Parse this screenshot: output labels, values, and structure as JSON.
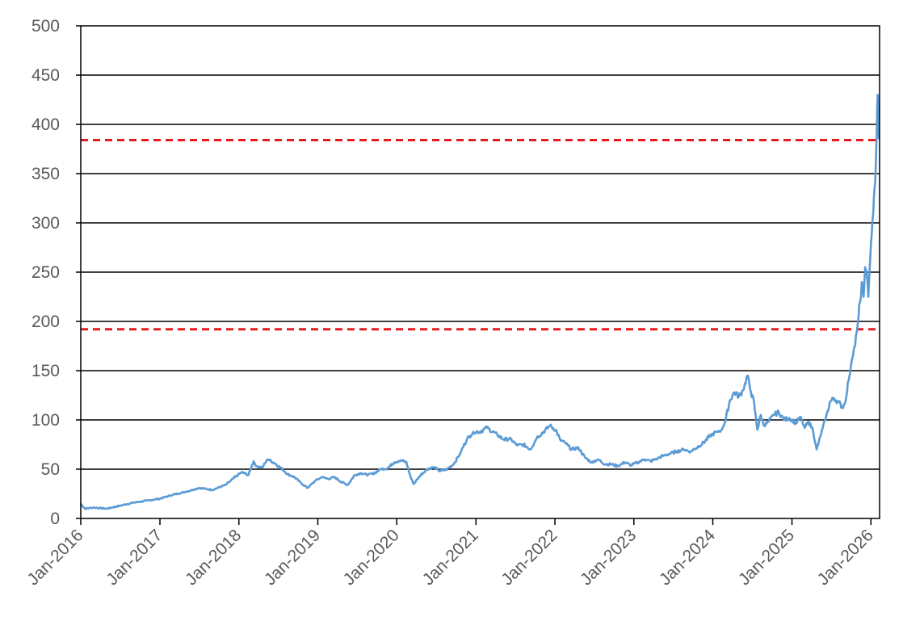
{
  "chart_data": {
    "type": "line",
    "title": "",
    "xlabel": "",
    "ylabel": "",
    "ylim": [
      0,
      500
    ],
    "y_ticks": [
      "0",
      "50",
      "100",
      "150",
      "200",
      "250",
      "300",
      "350",
      "400",
      "450",
      "500"
    ],
    "x_ticks": [
      "Jan-2016",
      "Jan-2017",
      "Jan-2018",
      "Jan-2019",
      "Jan-2020",
      "Jan-2021",
      "Jan-2022",
      "Jan-2023",
      "Jan-2024",
      "Jan-2025",
      "Jan-2026"
    ],
    "xlim": [
      "2016-01-01",
      "2026-02-10"
    ],
    "grid": "horizontal",
    "legend": "none",
    "series": [
      {
        "color": "#5b9bd5",
        "x": [
          "2016-01-01",
          "2016-01-20",
          "2016-03-01",
          "2016-05-01",
          "2016-07-01",
          "2016-09-01",
          "2016-11-01",
          "2017-01-01",
          "2017-03-01",
          "2017-05-01",
          "2017-07-01",
          "2017-09-01",
          "2017-11-01",
          "2017-12-15",
          "2018-01-15",
          "2018-02-15",
          "2018-03-10",
          "2018-03-25",
          "2018-04-20",
          "2018-05-15",
          "2018-06-10",
          "2018-07-10",
          "2018-08-15",
          "2018-09-15",
          "2018-10-20",
          "2018-11-15",
          "2018-12-20",
          "2019-01-20",
          "2019-02-20",
          "2019-03-20",
          "2019-04-20",
          "2019-05-20",
          "2019-06-20",
          "2019-07-20",
          "2019-08-20",
          "2019-09-20",
          "2019-10-20",
          "2019-11-20",
          "2019-12-20",
          "2020-01-20",
          "2020-02-15",
          "2020-03-05",
          "2020-03-20",
          "2020-04-20",
          "2020-05-20",
          "2020-06-20",
          "2020-07-20",
          "2020-08-20",
          "2020-09-20",
          "2020-10-20",
          "2020-11-20",
          "2020-12-20",
          "2021-01-20",
          "2021-02-20",
          "2021-03-20",
          "2021-04-10",
          "2021-05-10",
          "2021-06-10",
          "2021-07-10",
          "2021-08-10",
          "2021-09-10",
          "2021-10-10",
          "2021-11-10",
          "2021-12-10",
          "2022-01-05",
          "2022-01-25",
          "2022-02-20",
          "2022-03-20",
          "2022-04-20",
          "2022-05-20",
          "2022-06-20",
          "2022-07-20",
          "2022-08-20",
          "2022-09-20",
          "2022-10-20",
          "2022-11-20",
          "2022-12-20",
          "2023-01-20",
          "2023-02-20",
          "2023-03-20",
          "2023-04-20",
          "2023-05-20",
          "2023-06-20",
          "2023-07-20",
          "2023-08-20",
          "2023-09-20",
          "2023-10-20",
          "2023-11-20",
          "2023-12-20",
          "2024-01-20",
          "2024-02-10",
          "2024-03-01",
          "2024-03-20",
          "2024-04-10",
          "2024-05-01",
          "2024-05-20",
          "2024-06-10",
          "2024-06-25",
          "2024-07-10",
          "2024-07-25",
          "2024-08-10",
          "2024-08-25",
          "2024-09-15",
          "2024-10-10",
          "2024-11-01",
          "2024-11-25",
          "2024-12-20",
          "2025-01-20",
          "2025-02-10",
          "2025-03-01",
          "2025-03-20",
          "2025-04-08",
          "2025-04-25",
          "2025-05-15",
          "2025-06-05",
          "2025-06-25",
          "2025-07-15",
          "2025-08-05",
          "2025-08-25",
          "2025-09-10",
          "2025-09-20",
          "2025-10-01",
          "2025-10-10",
          "2025-10-20",
          "2025-10-28",
          "2025-11-05",
          "2025-11-12",
          "2025-11-20",
          "2025-11-28",
          "2025-12-05",
          "2025-12-12",
          "2025-12-20",
          "2025-12-28",
          "2026-01-05",
          "2026-01-12",
          "2026-01-18",
          "2026-01-24",
          "2026-01-28",
          "2026-02-01",
          "2026-02-04",
          "2026-02-07"
        ],
        "values": [
          15,
          10,
          11,
          10,
          13,
          16,
          18,
          20,
          24,
          27,
          31,
          29,
          34,
          42,
          47,
          44,
          58,
          53,
          52,
          60,
          57,
          52,
          45,
          42,
          35,
          31,
          38,
          42,
          40,
          42,
          37,
          34,
          44,
          46,
          44,
          46,
          50,
          51,
          57,
          59,
          57,
          42,
          35,
          44,
          50,
          52,
          48,
          50,
          55,
          66,
          80,
          88,
          88,
          92,
          88,
          85,
          80,
          81,
          74,
          75,
          70,
          82,
          88,
          94,
          90,
          80,
          76,
          70,
          72,
          62,
          57,
          60,
          55,
          55,
          53,
          57,
          54,
          57,
          60,
          58,
          61,
          64,
          66,
          68,
          70,
          68,
          72,
          77,
          84,
          88,
          90,
          100,
          120,
          128,
          124,
          130,
          145,
          128,
          118,
          90,
          105,
          94,
          98,
          105,
          108,
          100,
          102,
          97,
          103,
          92,
          98,
          90,
          70,
          85,
          100,
          118,
          122,
          118,
          112,
          125,
          140,
          155,
          165,
          175,
          190,
          205,
          220,
          240,
          225,
          255,
          250,
          225,
          260,
          290,
          310,
          335,
          360,
          390,
          430,
          410,
          385
        ]
      }
    ],
    "reference_lines": [
      {
        "y": 384,
        "color": "#e41a1c",
        "style": "dashed"
      },
      {
        "y": 192,
        "color": "#e41a1c",
        "style": "dashed"
      }
    ]
  }
}
